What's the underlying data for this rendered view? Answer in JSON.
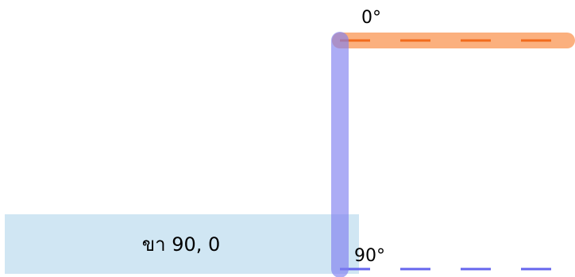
{
  "labels": {
    "top_angle": "0°",
    "bottom_angle": "90°",
    "caption": "ขา 90, 0"
  },
  "colors": {
    "top_band": "#fbb07e",
    "top_dash": "#f26b1d",
    "vertical_band": "#a6a6f6",
    "bottom_dash": "#6666ee",
    "caption_box": "#d0e6f3"
  }
}
